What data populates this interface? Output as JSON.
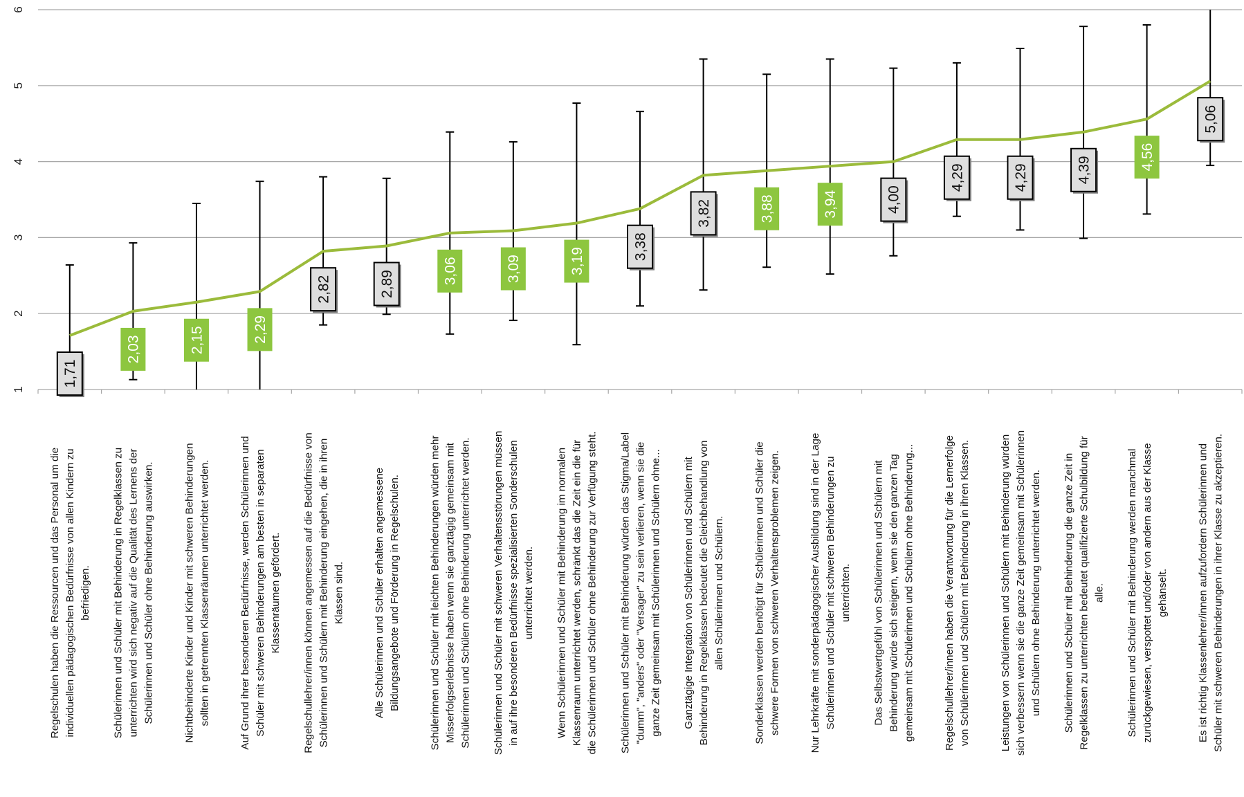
{
  "chart_data": {
    "type": "line",
    "ylim": [
      1,
      6
    ],
    "yticks": [
      "1",
      "2",
      "3",
      "4",
      "5",
      "6"
    ],
    "grid": true,
    "series": [
      {
        "values": [
          1.71,
          2.03,
          2.15,
          2.29,
          2.82,
          2.89,
          3.06,
          3.09,
          3.19,
          3.38,
          3.82,
          3.88,
          3.94,
          4.0,
          4.29,
          4.29,
          4.39,
          4.56,
          5.06
        ],
        "labels": [
          "1,71",
          "2,03",
          "2,15",
          "2,29",
          "2,82",
          "2,89",
          "3,06",
          "3,09",
          "3,19",
          "3,38",
          "3,82",
          "3,88",
          "3,94",
          "4,00",
          "4,29",
          "4,29",
          "4,39",
          "4,56",
          "5,06"
        ],
        "error_low": [
          0.78,
          1.13,
          0.95,
          0.95,
          1.85,
          1.99,
          1.73,
          1.91,
          1.59,
          2.1,
          2.31,
          2.61,
          2.52,
          2.76,
          3.28,
          3.1,
          2.99,
          3.31,
          3.95
        ],
        "error_high": [
          2.64,
          2.93,
          3.45,
          3.74,
          3.8,
          3.78,
          4.39,
          4.26,
          4.77,
          4.66,
          5.35,
          5.15,
          5.35,
          5.23,
          5.3,
          5.49,
          5.78,
          5.8,
          6.0
        ],
        "highlight": [
          false,
          true,
          true,
          true,
          false,
          false,
          true,
          true,
          true,
          false,
          false,
          true,
          true,
          false,
          false,
          false,
          false,
          true,
          false
        ]
      }
    ],
    "categories": [
      [
        "Regelschulen haben die Ressourcen und das Personal um die",
        "individuellen pädagogischen Bedürfnisse von allen Kindern zu",
        "befriedigen."
      ],
      [
        "Schülerinnen und Schüler mit Behinderung in Regelklassen zu",
        "unterrichten wird sich negativ auf die Qualität des Lernens der",
        "Schülerinnen und Schüler ohne Behinderung  auswirken."
      ],
      [
        "Nichtbehinderte Kinder und Kinder mit schweren Behinderungen",
        "sollten in getrennten Klassenräumen unterrichtet werden."
      ],
      [
        "Auf Grund ihrer besonderen Bedürfnisse, werden Schülerinnen und",
        "Schüler mit schweren Behinderungen am besten in separaten",
        "Klassenräumen gefördert."
      ],
      [
        "Regelschullehrer/innen können angemessen auf die Bedürfnisse von",
        "Schülerinnen und Schülern mit Behinderung eingehen, die in ihren",
        "Klassen sind."
      ],
      [
        "Alle Schülerinnen und Schüler erhalten angemessene",
        "Bildungsangebote und Förderung in Regelschulen."
      ],
      [
        "Schülerinnen und Schüler mit leichten Behinderungen  würden mehr",
        "Misserfolgserlebnisse haben wenn sie ganztägig gemeinsam mit",
        "Schülerinnen und Schülern ohne Behinderung  unterrichtet werden."
      ],
      [
        "Schülerinnen und Schüler mit schweren Verhaltensstörungen müssen",
        "in auf ihre besonderen Bedürfnisse spezialisierten Sonderschulen",
        "unterrichtet werden."
      ],
      [
        "Wenn Schülerinnen und Schüler mit Behinderung im normalen",
        "Klassenraum unterrichtet werden, schränkt das die Zeit ein die für",
        "die Schülerinnen und Schüler ohne Behinderung zur Verfügung  steht."
      ],
      [
        "Schülerinnen und Schüler mit Behinderung  würden das Stigma/Label",
        "\"dumm\", \"anders\" oder \"Versager\" zu sein verlieren, wenn sie die",
        "ganze Zeit gemeinsam mit Schülerinnen und Schülern ohne..."
      ],
      [
        "Ganztägige Integration von Schülerinnen und Schülern mit",
        "Behinderung in Regelklassen bedeutet die Gleichbehandlung von",
        "allen Schülerinnen und Schülern."
      ],
      [
        "Sonderklassen werden benötigt für Schülerinnen und Schüler die",
        "schwere Formen von schweren Verhaltensproblemen zeigen."
      ],
      [
        "Nur Lehrkräfte mit sonderpädagogischer  Ausbildung sind in der Lage",
        "Schülerinnen und Schüler mit schweren Behinderungen zu",
        "unterrichten."
      ],
      [
        "Das Selbstwertgefühl von Schülerinnen und Schülern mit",
        "Behinderung würde sich steigern, wenn sie den ganzen Tag",
        "gemeinsam mit Schülerinnen und Schülern ohne Behinderung..."
      ],
      [
        "Regelschullehrer/innen haben die Verantwortung für die Lernerfolge",
        "von Schülerinnen und Schülern mit Behinderung  in ihren Klassen."
      ],
      [
        "Leistungen von Schülerinnen und Schülern mit Behinderung würden",
        "sich verbessern wenn sie die ganze Zeit gemeinsam mit Schülerinnen",
        "und Schülern ohne Behinderung unterrichtet werden."
      ],
      [
        "Schülerinnen und Schüler mit Behinderung die ganze Zeit in",
        "Regelklassen zu unterrichten bedeutet qualifizierte Schulbildung für",
        "alle."
      ],
      [
        "Schülerinnen und Schüler mit Behinderung  werden manchmal",
        "zurückgewiesen, verspottet und/oder von andern aus der Klasse",
        "gehänselt."
      ],
      [
        "Es ist richtig Klassenlehrer/innen aufzufordern Schülerinnen und",
        "Schüler mit schweren Behinderungen in ihrer Klasse zu akzeptieren."
      ]
    ],
    "colors": {
      "line": "#9bbb3b",
      "green_box": "#8dc63f",
      "grey_box": "#dedede",
      "grid": "#a6a6a6",
      "error_bar": "#000000"
    }
  }
}
